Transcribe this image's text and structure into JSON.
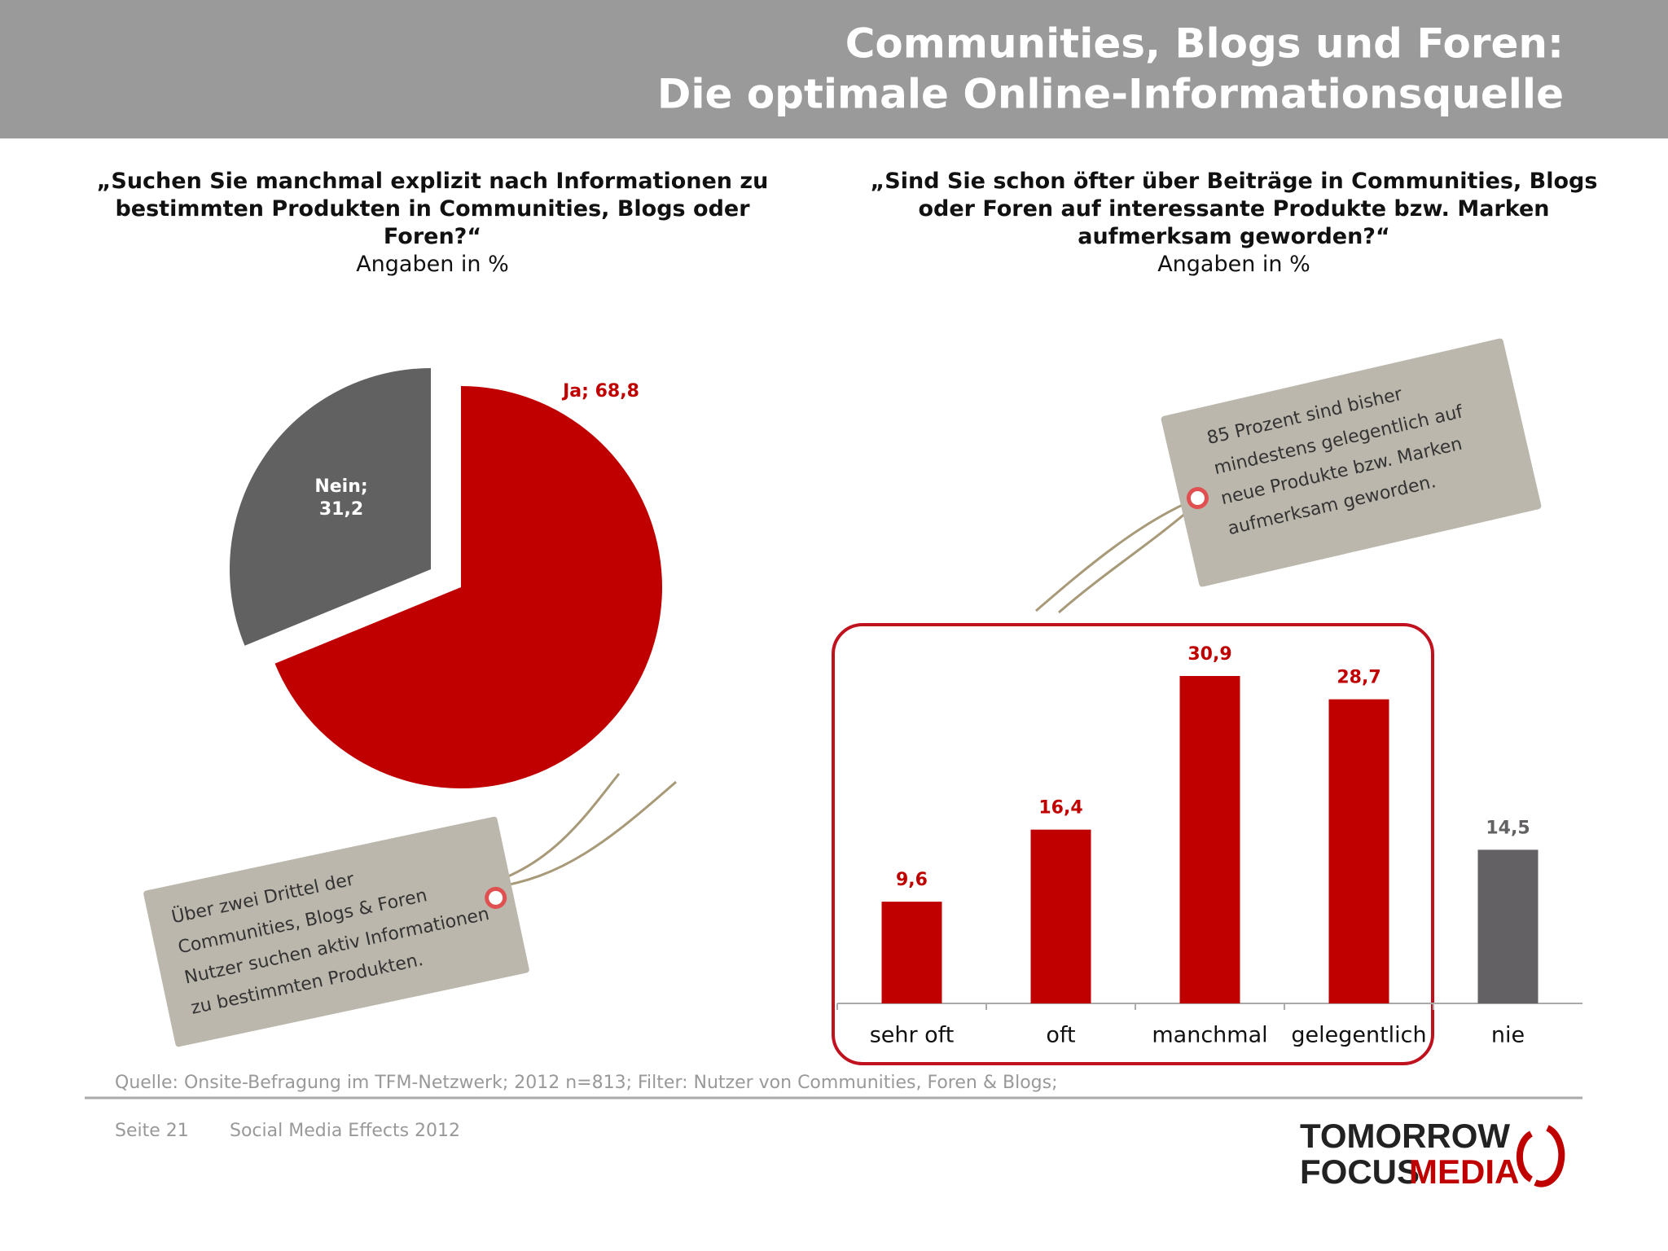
{
  "header": {
    "title": [
      "Communities, Blogs und Foren:",
      "Die optimale Online-Informationsquelle"
    ]
  },
  "chart_data": [
    {
      "type": "pie",
      "title": "„Suchen Sie manchmal explizit nach Informationen zu bestimmten Produkten in Communities, Blogs oder Foren?“",
      "subtitle": "Angaben in %",
      "categories": [
        "Ja",
        "Nein"
      ],
      "values": [
        68.8,
        31.2
      ],
      "value_labels": [
        "Ja; 68,8",
        "Nein; 31,2"
      ],
      "colors": [
        "#c00000",
        "#616161"
      ],
      "annotation": [
        "Über zwei Drittel der",
        "Communities, Blogs & Foren",
        "Nutzer suchen aktiv Informationen",
        "zu bestimmten Produkten."
      ]
    },
    {
      "type": "bar",
      "title": "„Sind Sie schon öfter über Beiträge in Communities, Blogs oder Foren auf interessante Produkte bzw. Marken aufmerksam geworden?“",
      "subtitle": "Angaben in %",
      "categories": [
        "sehr oft",
        "oft",
        "manchmal",
        "gelegentlich",
        "nie"
      ],
      "values": [
        9.6,
        16.4,
        30.9,
        28.7,
        14.5
      ],
      "value_labels": [
        "9,6",
        "16,4",
        "30,9",
        "28,7",
        "14,5"
      ],
      "colors": [
        "#c00000",
        "#c00000",
        "#c00000",
        "#c00000",
        "#636164"
      ],
      "annotation": [
        "85 Prozent sind bisher",
        "mindestens gelegentlich auf",
        "neue Produkte bzw. Marken",
        "aufmerksam geworden."
      ]
    }
  ],
  "source": "Quelle: Onsite-Befragung im TFM-Netzwerk; 2012 n=813; Filter: Nutzer von Communities, Foren & Blogs;",
  "footer": {
    "page": "Seite 21",
    "report": "Social Media Effects 2012"
  },
  "logo": [
    "TOMORROW",
    "FOCUS",
    "MEDIA"
  ]
}
